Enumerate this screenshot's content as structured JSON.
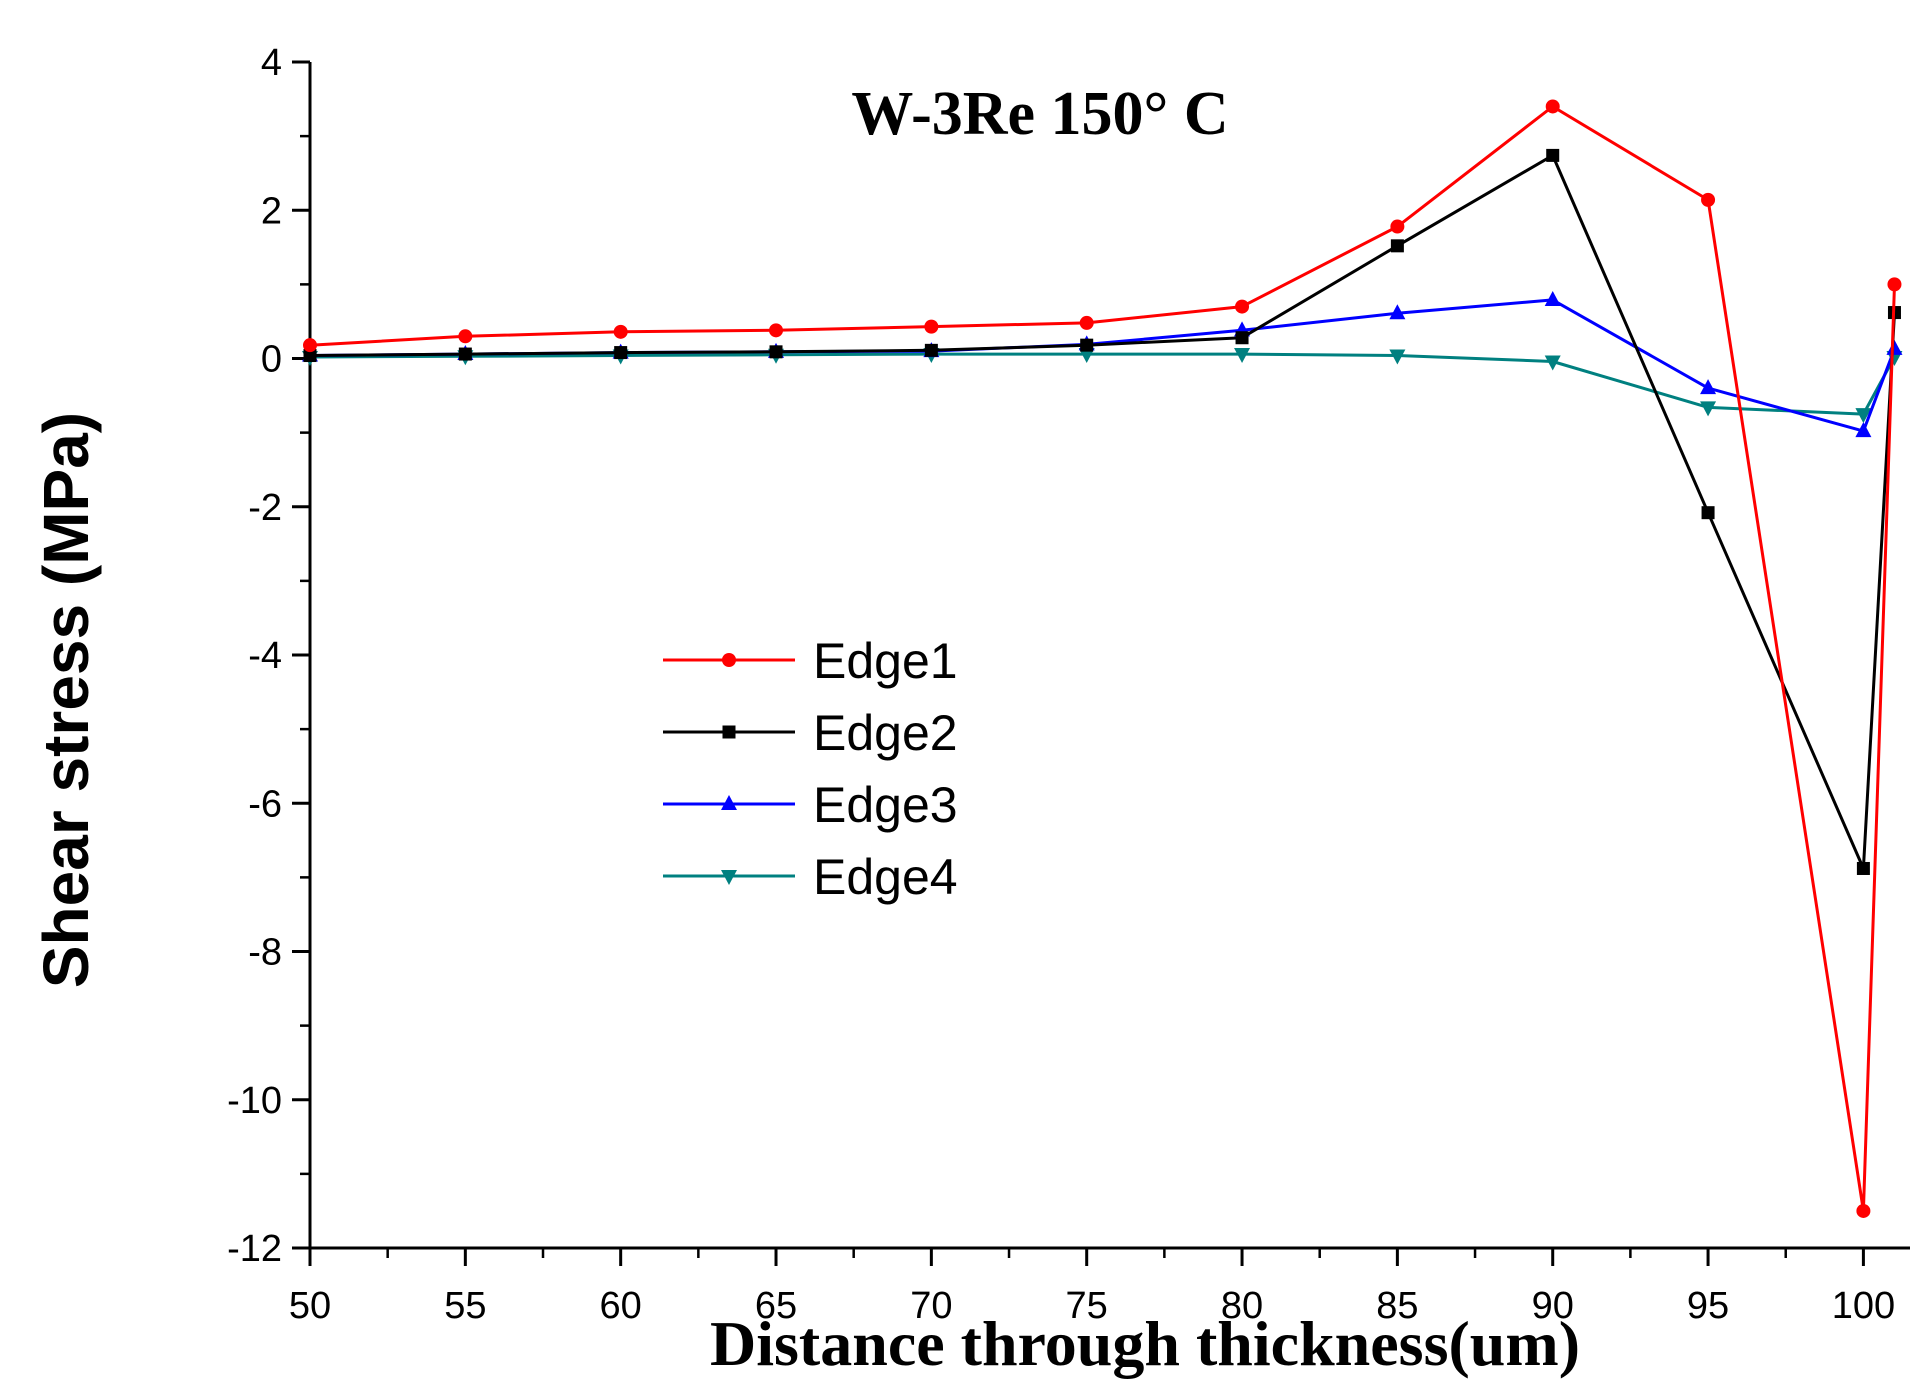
{
  "chart_data": {
    "type": "line",
    "title": "W-3Re 150°  C",
    "xlabel": "Distance through thickness(um)",
    "ylabel": "Shear stress (MPa)",
    "xlim": [
      50,
      101.5
    ],
    "ylim": [
      -12,
      4
    ],
    "x_ticks": [
      50,
      55,
      60,
      65,
      70,
      75,
      80,
      85,
      90,
      95,
      100
    ],
    "y_ticks": [
      4,
      2,
      0,
      -2,
      -4,
      -6,
      -8,
      -10,
      -12
    ],
    "x": [
      50,
      55,
      60,
      65,
      70,
      75,
      80,
      85,
      90,
      95,
      100,
      101
    ],
    "legend_position": "center-left",
    "grid": false,
    "series": [
      {
        "name": "Edge1",
        "color": "#ff0000",
        "marker": "circle",
        "values": [
          0.18,
          0.3,
          0.36,
          0.38,
          0.43,
          0.48,
          0.7,
          1.78,
          3.4,
          2.14,
          -11.5,
          1.0
        ]
      },
      {
        "name": "Edge2",
        "color": "#000000",
        "marker": "square",
        "values": [
          0.04,
          0.06,
          0.08,
          0.09,
          0.11,
          0.18,
          0.28,
          1.52,
          2.74,
          -2.08,
          -6.88,
          0.62
        ]
      },
      {
        "name": "Edge3",
        "color": "#0000ff",
        "marker": "triangle-up",
        "values": [
          0.04,
          0.06,
          0.08,
          0.09,
          0.1,
          0.19,
          0.38,
          0.61,
          0.79,
          -0.4,
          -0.98,
          0.13
        ]
      },
      {
        "name": "Edge4",
        "color": "#008080",
        "marker": "triangle-down",
        "values": [
          0.02,
          0.03,
          0.04,
          0.05,
          0.06,
          0.06,
          0.06,
          0.04,
          -0.04,
          -0.66,
          -0.75,
          0.02
        ]
      }
    ]
  }
}
